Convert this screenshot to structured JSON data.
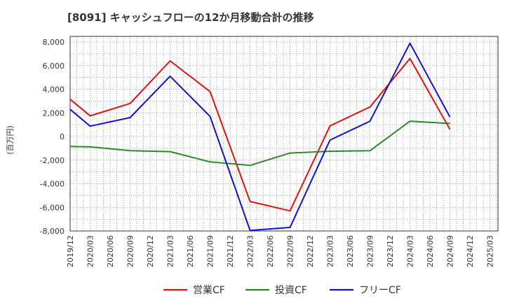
{
  "chart_data": {
    "type": "line",
    "title": "[8091]  キャッシュフローの12か月移動合計の推移",
    "xlabel": "",
    "ylabel": "(百万円)",
    "ylim": [
      -8000,
      8000
    ],
    "yticks": [
      8000,
      6000,
      4000,
      2000,
      0,
      -2000,
      -4000,
      -6000,
      -8000
    ],
    "ytick_labels": [
      "8,000",
      "6,000",
      "4,000",
      "2,000",
      "0",
      "-2,000",
      "-4,000",
      "-6,000",
      "-8,000"
    ],
    "categories": [
      "2019/12",
      "2020/03",
      "2020/06",
      "2020/09",
      "2020/12",
      "2021/03",
      "2021/06",
      "2021/09",
      "2021/12",
      "2022/03",
      "2022/06",
      "2022/09",
      "2022/12",
      "2023/03",
      "2023/06",
      "2023/09",
      "2023/12",
      "2024/03",
      "2024/06",
      "2024/09",
      "2024/12",
      "2025/03"
    ],
    "grid": true,
    "legend_position": "bottom",
    "series": [
      {
        "name": "営業CF",
        "color": "#e01010",
        "points": [
          {
            "x": "2019/12",
            "y": 3150
          },
          {
            "x": "2020/03",
            "y": 1750
          },
          {
            "x": "2020/09",
            "y": 2800
          },
          {
            "x": "2021/03",
            "y": 6400
          },
          {
            "x": "2021/09",
            "y": 3800
          },
          {
            "x": "2022/03",
            "y": -5500
          },
          {
            "x": "2022/09",
            "y": -6300
          },
          {
            "x": "2023/03",
            "y": 900
          },
          {
            "x": "2023/09",
            "y": 2500
          },
          {
            "x": "2024/03",
            "y": 6600
          },
          {
            "x": "2024/09",
            "y": 600
          }
        ]
      },
      {
        "name": "投資CF",
        "color": "#2a8a2a",
        "points": [
          {
            "x": "2019/12",
            "y": -850
          },
          {
            "x": "2020/03",
            "y": -870
          },
          {
            "x": "2020/09",
            "y": -1200
          },
          {
            "x": "2021/03",
            "y": -1280
          },
          {
            "x": "2021/09",
            "y": -2150
          },
          {
            "x": "2022/03",
            "y": -2450
          },
          {
            "x": "2022/09",
            "y": -1400
          },
          {
            "x": "2023/03",
            "y": -1250
          },
          {
            "x": "2023/09",
            "y": -1200
          },
          {
            "x": "2024/03",
            "y": 1300
          },
          {
            "x": "2024/09",
            "y": 1100
          }
        ]
      },
      {
        "name": "フリーCF",
        "color": "#1010d0",
        "points": [
          {
            "x": "2019/12",
            "y": 2300
          },
          {
            "x": "2020/03",
            "y": 880
          },
          {
            "x": "2020/09",
            "y": 1600
          },
          {
            "x": "2021/03",
            "y": 5100
          },
          {
            "x": "2021/09",
            "y": 1700
          },
          {
            "x": "2022/03",
            "y": -7950
          },
          {
            "x": "2022/09",
            "y": -7700
          },
          {
            "x": "2023/03",
            "y": -300
          },
          {
            "x": "2023/09",
            "y": 1300
          },
          {
            "x": "2024/03",
            "y": 7900
          },
          {
            "x": "2024/09",
            "y": 1650
          }
        ]
      }
    ]
  }
}
